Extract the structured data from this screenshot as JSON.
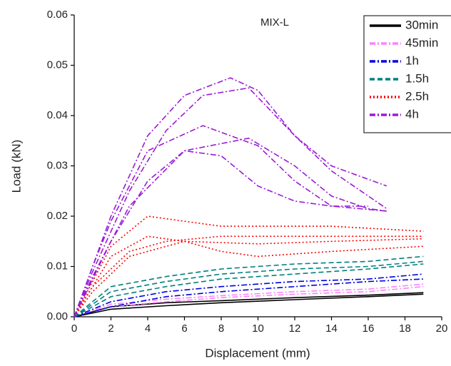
{
  "chart_data": {
    "type": "line",
    "title": "MIX-L",
    "x_label": "Displacement (mm)",
    "y_label": "Load (kN)",
    "xlim": [
      0,
      20
    ],
    "xticks": [
      0,
      2,
      4,
      6,
      8,
      10,
      12,
      14,
      16,
      18,
      20
    ],
    "ylim": [
      0,
      0.06
    ],
    "yticks": [
      {
        "value": 0,
        "label": "0.00"
      },
      0.01,
      0.02,
      0.03,
      0.04,
      0.05,
      0.06
    ],
    "legend": "top-right",
    "series": [
      {
        "name": "30min",
        "color": "#000000",
        "style": "solid",
        "lines": [
          {
            "x": [
              0,
              2,
              5,
              8,
              12,
              16,
              19
            ],
            "values": [
              0,
              0.002,
              0.0028,
              0.0032,
              0.0038,
              0.0043,
              0.0048
            ]
          },
          {
            "x": [
              0,
              2,
              5,
              8,
              12,
              16,
              19
            ],
            "values": [
              0,
              0.0015,
              0.0022,
              0.0028,
              0.0034,
              0.004,
              0.0045
            ]
          }
        ]
      },
      {
        "name": "45min",
        "color": "#ff80ff",
        "style": "dashdot",
        "lines": [
          {
            "x": [
              0,
              2,
              5,
              8,
              12,
              16,
              19
            ],
            "values": [
              0,
              0.0025,
              0.0035,
              0.0042,
              0.005,
              0.0055,
              0.0065
            ]
          },
          {
            "x": [
              0,
              2,
              5,
              8,
              12,
              16,
              19
            ],
            "values": [
              0,
              0.002,
              0.003,
              0.0038,
              0.0045,
              0.005,
              0.006
            ]
          }
        ]
      },
      {
        "name": "1h",
        "color": "#0000e0",
        "style": "dashdot",
        "lines": [
          {
            "x": [
              0,
              2,
              5,
              8,
              12,
              16,
              19
            ],
            "values": [
              0,
              0.003,
              0.005,
              0.006,
              0.007,
              0.0075,
              0.0085
            ]
          },
          {
            "x": [
              0,
              2,
              5,
              8,
              12,
              16,
              19
            ],
            "values": [
              0,
              0.002,
              0.004,
              0.005,
              0.006,
              0.007,
              0.0075
            ]
          }
        ]
      },
      {
        "name": "1.5h",
        "color": "#008080",
        "style": "dash",
        "lines": [
          {
            "x": [
              0,
              2,
              5,
              8,
              12,
              16,
              19
            ],
            "values": [
              0,
              0.006,
              0.008,
              0.0095,
              0.0105,
              0.011,
              0.012
            ]
          },
          {
            "x": [
              0,
              2,
              5,
              8,
              12,
              16,
              19
            ],
            "values": [
              0,
              0.004,
              0.006,
              0.0075,
              0.0085,
              0.0095,
              0.0105
            ]
          },
          {
            "x": [
              0,
              2,
              5,
              8,
              12,
              16,
              19
            ],
            "values": [
              0,
              0.005,
              0.007,
              0.0085,
              0.0095,
              0.01,
              0.011
            ]
          }
        ]
      },
      {
        "name": "2.5h",
        "color": "#ff0000",
        "style": "dot",
        "lines": [
          {
            "x": [
              0,
              1,
              2,
              4,
              6,
              8,
              10,
              14,
              19
            ],
            "values": [
              0,
              0.007,
              0.014,
              0.02,
              0.019,
              0.018,
              0.018,
              0.018,
              0.017
            ]
          },
          {
            "x": [
              0,
              1,
              3,
              5,
              8,
              12,
              16,
              19
            ],
            "values": [
              0,
              0.006,
              0.013,
              0.015,
              0.016,
              0.016,
              0.016,
              0.016
            ]
          },
          {
            "x": [
              0,
              1,
              3,
              6,
              8,
              10,
              14,
              19
            ],
            "values": [
              0,
              0.005,
              0.012,
              0.015,
              0.013,
              0.012,
              0.013,
              0.014
            ]
          },
          {
            "x": [
              0,
              1,
              2,
              4,
              6,
              10,
              14,
              19
            ],
            "values": [
              0,
              0.006,
              0.012,
              0.016,
              0.015,
              0.0145,
              0.015,
              0.0155
            ]
          }
        ]
      },
      {
        "name": "4h",
        "color": "#9a1ad6",
        "style": "dashdot",
        "lines": [
          {
            "x": [
              0,
              1,
              2,
              4,
              6,
              8.5,
              10,
              12,
              14,
              17
            ],
            "values": [
              0,
              0.01,
              0.02,
              0.036,
              0.044,
              0.0475,
              0.045,
              0.036,
              0.03,
              0.026
            ]
          },
          {
            "x": [
              0,
              1,
              2,
              4,
              7,
              10,
              12,
              14,
              17
            ],
            "values": [
              0,
              0.01,
              0.019,
              0.033,
              0.038,
              0.034,
              0.027,
              0.022,
              0.021
            ]
          },
          {
            "x": [
              0,
              1,
              3,
              5,
              7,
              9.5,
              12,
              14,
              17
            ],
            "values": [
              0,
              0.009,
              0.025,
              0.037,
              0.044,
              0.0455,
              0.036,
              0.029,
              0.0215
            ]
          },
          {
            "x": [
              0,
              1,
              3,
              6,
              9.5,
              12,
              14,
              16,
              17
            ],
            "values": [
              0,
              0.008,
              0.022,
              0.033,
              0.0355,
              0.03,
              0.024,
              0.0215,
              0.021
            ]
          },
          {
            "x": [
              0,
              2,
              4,
              6,
              8,
              10,
              12,
              14,
              16
            ],
            "values": [
              0,
              0.015,
              0.027,
              0.033,
              0.032,
              0.026,
              0.023,
              0.022,
              0.022
            ]
          }
        ]
      }
    ]
  }
}
